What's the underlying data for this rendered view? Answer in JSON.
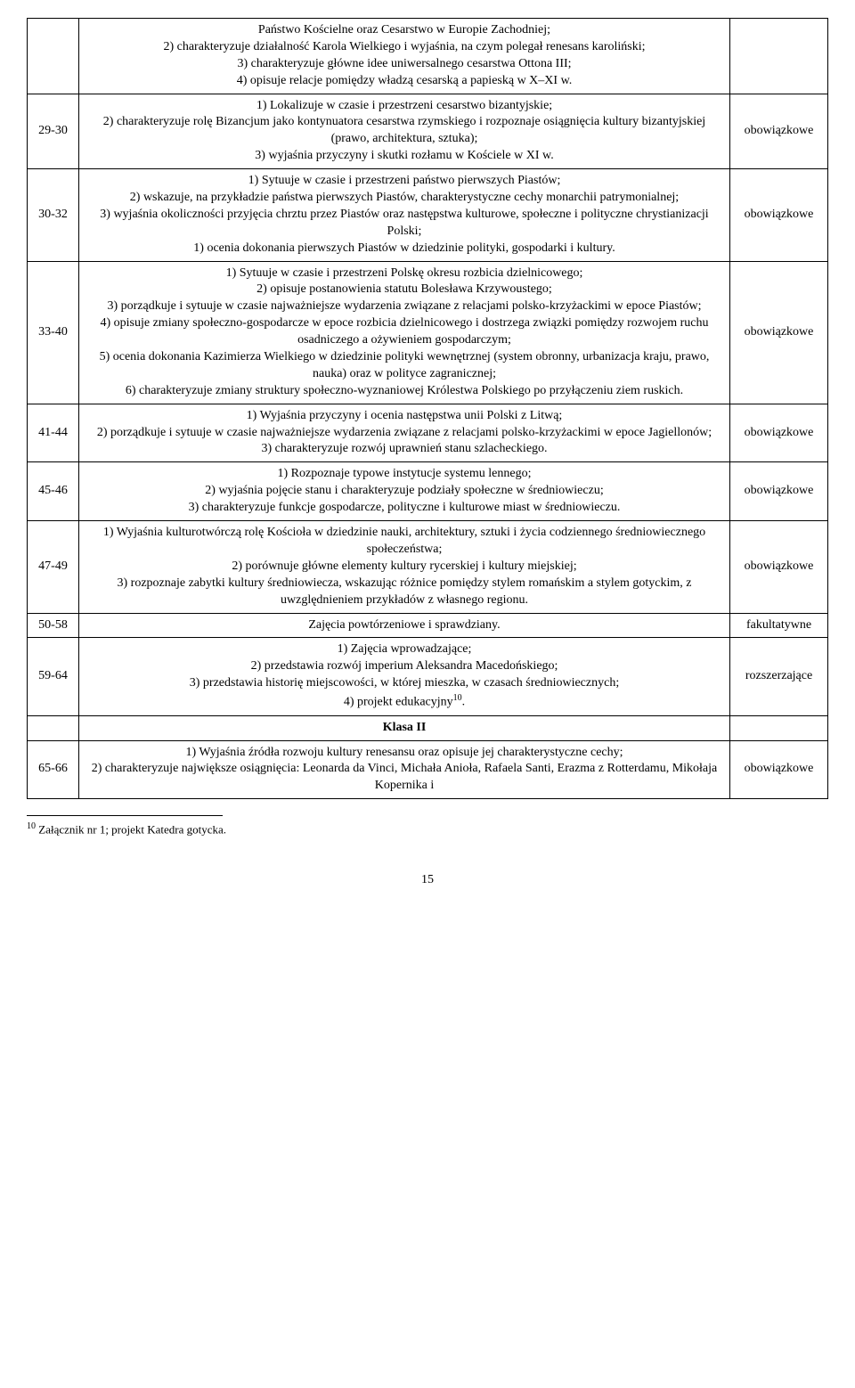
{
  "rows": [
    {
      "range": "",
      "status": "",
      "content": "Państwo Kościelne oraz Cesarstwo w Europie Zachodniej;\n2)   charakteryzuje działalność Karola Wielkiego i wyjaśnia, na czym polegał renesans karoliński;\n3)   charakteryzuje główne idee uniwersalnego cesarstwa Ottona III;\n4)   opisuje relacje pomiędzy władzą cesarską a papieską w X–XI w."
    },
    {
      "range": "29-30",
      "status": "obowiązkowe",
      "content": "1)   Lokalizuje w czasie i przestrzeni cesarstwo bizantyjskie;\n2)   charakteryzuje rolę Bizancjum jako kontynuatora cesarstwa rzymskiego i rozpoznaje osiągnięcia kultury bizantyjskiej (prawo, architektura, sztuka);\n3)   wyjaśnia przyczyny i skutki rozłamu w Kościele w XI w."
    },
    {
      "range": "30-32",
      "status": "obowiązkowe",
      "content": "1)   Sytuuje w czasie i przestrzeni państwo pierwszych Piastów;\n2)   wskazuje, na przykładzie państwa pierwszych Piastów, charakterystyczne cechy monarchii patrymonialnej;\n3)   wyjaśnia okoliczności przyjęcia chrztu przez Piastów oraz następstwa kulturowe, społeczne i polityczne chrystianizacji Polski;\n1)   ocenia dokonania pierwszych Piastów w dziedzinie polityki, gospodarki i kultury."
    },
    {
      "range": "33-40",
      "status": "obowiązkowe",
      "content": "1)   Sytuuje w czasie i przestrzeni Polskę okresu rozbicia dzielnicowego;\n2)   opisuje postanowienia statutu Bolesława Krzywoustego;\n3)   porządkuje i sytuuje w czasie najważniejsze wydarzenia związane z relacjami polsko-krzyżackimi w epoce Piastów;\n4)   opisuje zmiany społeczno-gospodarcze w epoce rozbicia dzielnicowego i dostrzega związki pomiędzy rozwojem ruchu osadniczego a ożywieniem gospodarczym;\n5)   ocenia dokonania Kazimierza Wielkiego w dziedzinie polityki wewnętrznej (system obronny, urbanizacja kraju, prawo, nauka) oraz w polityce zagranicznej;\n6)   charakteryzuje zmiany struktury społeczno-wyznaniowej Królestwa Polskiego po przyłączeniu ziem ruskich."
    },
    {
      "range": "41-44",
      "status": "obowiązkowe",
      "content": "1)   Wyjaśnia przyczyny i ocenia następstwa unii Polski z Litwą;\n2)   porządkuje i sytuuje w czasie najważniejsze wydarzenia związane z relacjami polsko-krzyżackimi w epoce Jagiellonów;\n3)   charakteryzuje rozwój uprawnień stanu szlacheckiego."
    },
    {
      "range": "45-46",
      "status": "obowiązkowe",
      "content": "1)   Rozpoznaje typowe instytucje systemu lennego;\n2)   wyjaśnia pojęcie stanu i charakteryzuje podziały społeczne w średniowieczu;\n3)   charakteryzuje funkcje gospodarcze, polityczne i kulturowe miast w średniowieczu."
    },
    {
      "range": "47-49",
      "status": "obowiązkowe",
      "content": "1)   Wyjaśnia kulturotwórczą rolę Kościoła w dziedzinie nauki, architektury, sztuki i życia codziennego średniowiecznego społeczeństwa;\n2)   porównuje główne elementy kultury rycerskiej i kultury miejskiej;\n3)   rozpoznaje zabytki kultury średniowiecza, wskazując różnice pomiędzy stylem romańskim a stylem gotyckim, z uwzględnieniem przykładów z własnego regionu."
    },
    {
      "range": "50-58",
      "status": "fakultatywne",
      "content": "Zajęcia powtórzeniowe i sprawdziany."
    },
    {
      "range": "59-64",
      "status": "rozszerzające",
      "content": "1)   Zajęcia wprowadzające;\n2)   przedstawia rozwój imperium Aleksandra Macedońskiego;\n3)   przedstawia historię miejscowości, w której mieszka, w czasach średniowiecznych;\n4)   projekt edukacyjny",
      "footnote_marker": "10",
      "suffix": "."
    }
  ],
  "section_header": "Klasa II",
  "rows2": [
    {
      "range": "65-66",
      "status": "obowiązkowe",
      "content": "1)   Wyjaśnia źródła rozwoju kultury renesansu oraz opisuje jej charakterystyczne cechy;\n2)   charakteryzuje największe osiągnięcia: Leonarda da Vinci, Michała Anioła, Rafaela Santi, Erazma z Rotterdamu, Mikołaja Kopernika i"
    }
  ],
  "footnote": {
    "marker": "10",
    "text": " Załącznik nr 1; projekt Katedra gotycka."
  },
  "page_number": "15"
}
